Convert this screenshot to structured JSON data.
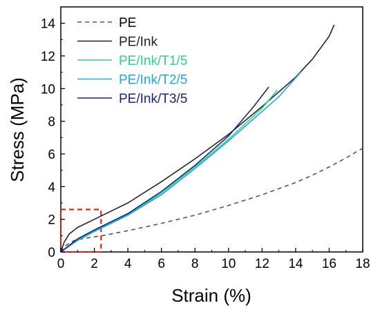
{
  "chart_data": {
    "type": "line",
    "xlabel": "Strain (%)",
    "ylabel": "Stress (MPa)",
    "xlim": [
      0,
      18
    ],
    "ylim": [
      0,
      15
    ],
    "xticks": [
      0,
      2,
      4,
      6,
      8,
      10,
      12,
      14,
      16,
      18
    ],
    "yticks": [
      0,
      2,
      4,
      6,
      8,
      10,
      12,
      14
    ],
    "legend_position": "top-left",
    "grid": false,
    "series": [
      {
        "name": "PE",
        "color": "#555555",
        "dash": "dashed",
        "x": [
          0,
          0.3,
          0.8,
          1.5,
          2.5,
          4,
          6,
          8,
          10,
          12,
          14,
          15,
          16,
          17,
          18
        ],
        "y": [
          0,
          0.4,
          0.7,
          0.85,
          1.0,
          1.3,
          1.75,
          2.25,
          2.85,
          3.5,
          4.25,
          4.7,
          5.2,
          5.75,
          6.35
        ]
      },
      {
        "name": "PE/Ink",
        "color": "#222222",
        "dash": "solid",
        "x": [
          0,
          0.2,
          0.5,
          1.0,
          2.0,
          3.0,
          4.0,
          6.0,
          8.0,
          10.0,
          12.0,
          14.0,
          15.0,
          16.0,
          16.3
        ],
        "y": [
          0,
          0.6,
          1.1,
          1.5,
          2.0,
          2.5,
          3.0,
          4.3,
          5.7,
          7.2,
          8.9,
          10.7,
          11.8,
          13.2,
          13.9
        ]
      },
      {
        "name": "PE/Ink/T1/5",
        "color": "#2ecf8f",
        "dash": "solid",
        "x": [
          0,
          0.5,
          1.0,
          2.0,
          3.0,
          4.0,
          6.0,
          8.0,
          10.0,
          12.0,
          12.9
        ],
        "y": [
          0,
          0.35,
          0.75,
          1.3,
          1.8,
          2.3,
          3.6,
          5.2,
          6.9,
          8.8,
          9.9
        ]
      },
      {
        "name": "PE/Ink/T2/5",
        "color": "#1fa6e0",
        "dash": "solid",
        "x": [
          0,
          0.5,
          1.0,
          2.0,
          3.0,
          4.0,
          6.0,
          8.0,
          10.0,
          12.0,
          13.0,
          14.3
        ],
        "y": [
          0,
          0.35,
          0.7,
          1.25,
          1.75,
          2.25,
          3.5,
          5.1,
          6.8,
          8.6,
          9.5,
          11.0
        ]
      },
      {
        "name": "PE/Ink/T3/5",
        "color": "#1a237e",
        "dash": "solid",
        "x": [
          0,
          0.5,
          1.0,
          2.0,
          3.0,
          4.0,
          6.0,
          8.0,
          10.0,
          11.5,
          12.4
        ],
        "y": [
          0,
          0.4,
          0.8,
          1.35,
          1.85,
          2.35,
          3.7,
          5.3,
          7.1,
          8.9,
          10.1
        ]
      }
    ],
    "annotations": [
      {
        "type": "rect",
        "color": "#e8201e",
        "dash": "dashed",
        "x_range": [
          0,
          2.4
        ],
        "y_range": [
          0,
          2.6
        ]
      }
    ]
  }
}
